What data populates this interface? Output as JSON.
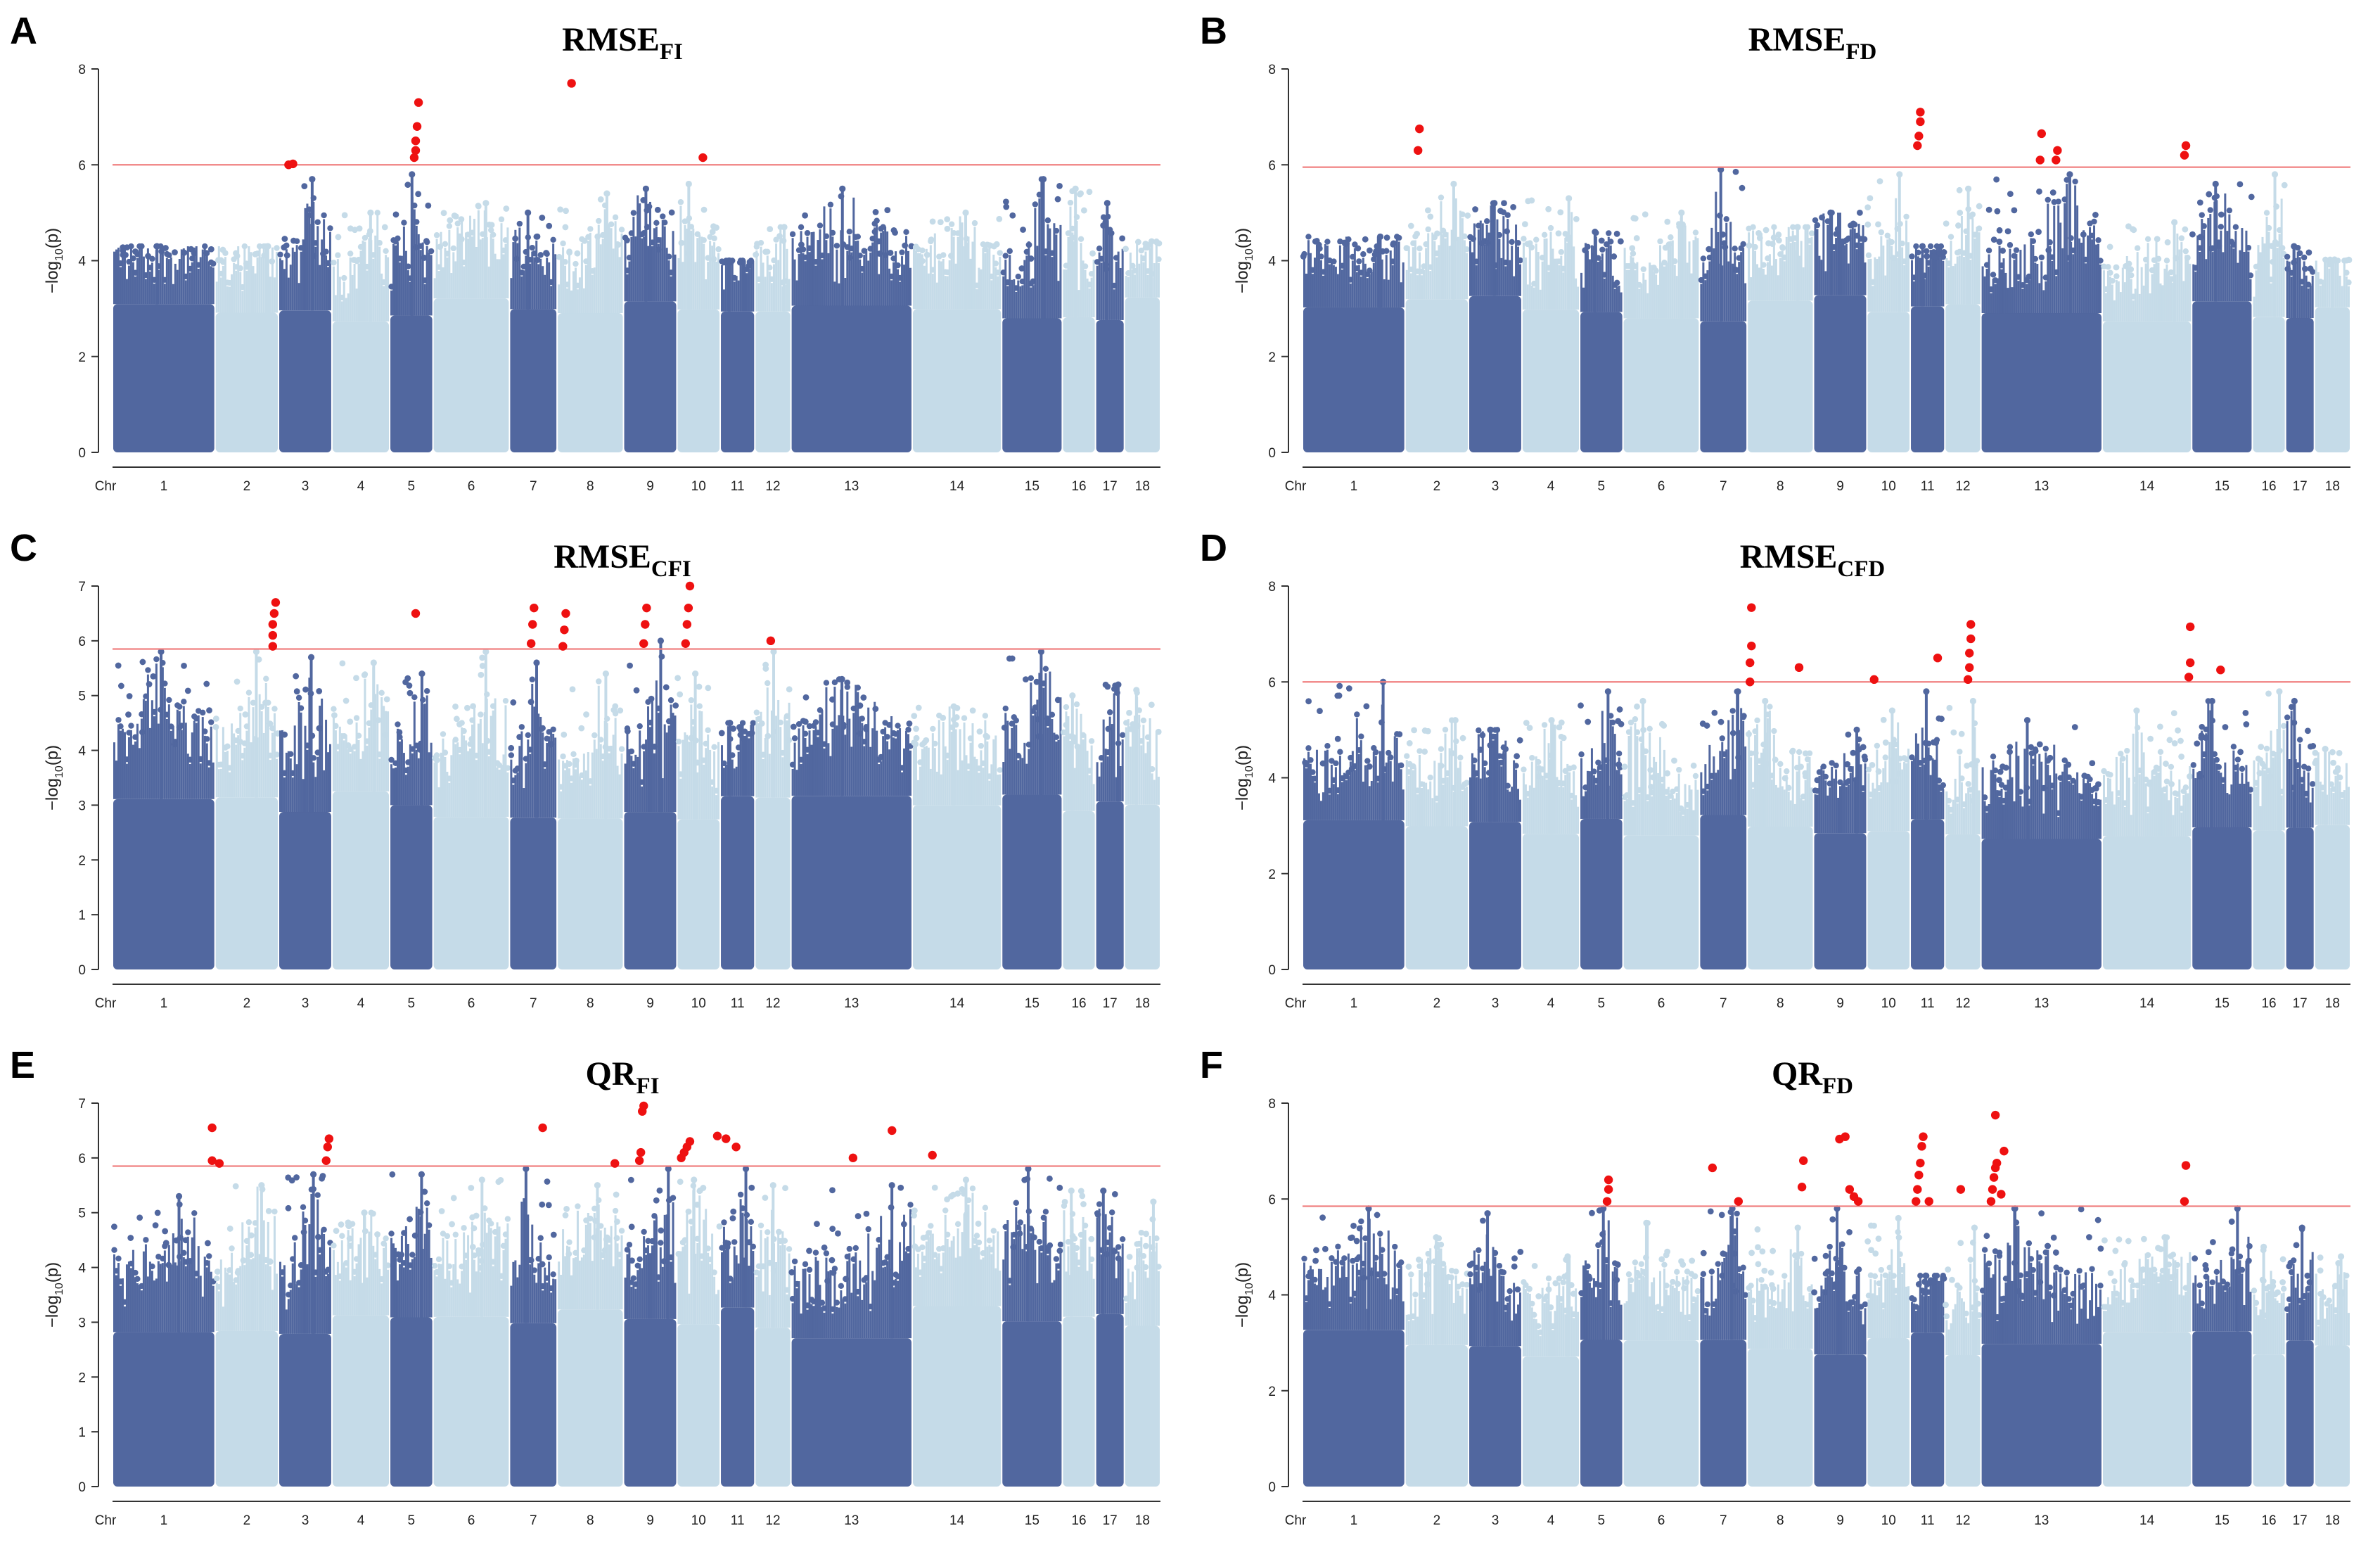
{
  "chart_data": [
    {
      "type": "scatter",
      "panel_label": "A",
      "title": "RMSE",
      "title_sub": "FI",
      "ylabel": "-log10(p)",
      "ylim": [
        0,
        8
      ],
      "yticks": [
        0,
        2,
        4,
        6,
        8
      ],
      "threshold": 6.0,
      "x_first_label": "Chr",
      "chromosomes": [
        "1",
        "2",
        "3",
        "4",
        "5",
        "6",
        "7",
        "8",
        "9",
        "10",
        "11",
        "12",
        "13",
        "14",
        "15",
        "16",
        "17",
        "18"
      ],
      "chr_spans": [
        [
          0,
          7.1
        ],
        [
          7.1,
          11.5
        ],
        [
          11.5,
          15.2
        ],
        [
          15.2,
          19.2
        ],
        [
          19.2,
          22.2
        ],
        [
          22.2,
          27.5
        ],
        [
          27.5,
          30.8
        ],
        [
          30.8,
          35.4
        ],
        [
          35.4,
          39.1
        ],
        [
          39.1,
          42.1
        ],
        [
          42.1,
          44.5
        ],
        [
          44.5,
          47.0
        ],
        [
          47.0,
          55.4
        ],
        [
          55.4,
          61.6
        ],
        [
          61.6,
          65.8
        ],
        [
          65.8,
          68.1
        ],
        [
          68.1,
          70.1
        ],
        [
          70.1,
          72.6
        ]
      ],
      "chr_peaks": [
        4.3,
        4.3,
        5.7,
        5.0,
        5.8,
        5.2,
        5.0,
        5.4,
        5.5,
        5.6,
        4.0,
        4.7,
        5.5,
        5.0,
        5.7,
        5.5,
        5.2,
        4.4
      ],
      "significant": [
        [
          12.2,
          6.0
        ],
        [
          12.5,
          6.02
        ],
        [
          20.9,
          6.15
        ],
        [
          21.0,
          6.3
        ],
        [
          21.0,
          6.5
        ],
        [
          21.1,
          6.8
        ],
        [
          21.2,
          7.3
        ],
        [
          31.8,
          7.7
        ],
        [
          40.9,
          6.15
        ]
      ]
    },
    {
      "type": "scatter",
      "panel_label": "B",
      "title": "RMSE",
      "title_sub": "FD",
      "ylabel": "-log10(p)",
      "ylim": [
        0,
        8
      ],
      "yticks": [
        0,
        2,
        4,
        6,
        8
      ],
      "threshold": 5.95,
      "x_first_label": "Chr",
      "chromosomes": [
        "1",
        "2",
        "3",
        "4",
        "5",
        "6",
        "7",
        "8",
        "9",
        "10",
        "11",
        "12",
        "13",
        "14",
        "15",
        "16",
        "17",
        "18"
      ],
      "chr_spans": [
        [
          0,
          7.1
        ],
        [
          7.1,
          11.5
        ],
        [
          11.5,
          15.2
        ],
        [
          15.2,
          19.2
        ],
        [
          19.2,
          22.2
        ],
        [
          22.2,
          27.5
        ],
        [
          27.5,
          30.8
        ],
        [
          30.8,
          35.4
        ],
        [
          35.4,
          39.1
        ],
        [
          39.1,
          42.1
        ],
        [
          42.1,
          44.5
        ],
        [
          44.5,
          47.0
        ],
        [
          47.0,
          55.4
        ],
        [
          55.4,
          61.6
        ],
        [
          61.6,
          65.8
        ],
        [
          65.8,
          68.1
        ],
        [
          68.1,
          70.1
        ],
        [
          70.1,
          72.6
        ]
      ],
      "chr_peaks": [
        4.5,
        5.6,
        5.2,
        5.3,
        4.6,
        5.0,
        5.9,
        4.7,
        5.0,
        5.8,
        4.3,
        5.5,
        5.8,
        4.8,
        5.6,
        5.8,
        4.3,
        4.0
      ],
      "significant": [
        [
          8.0,
          6.3
        ],
        [
          8.1,
          6.75
        ],
        [
          42.6,
          6.4
        ],
        [
          42.7,
          6.6
        ],
        [
          42.8,
          6.9
        ],
        [
          42.8,
          7.1
        ],
        [
          51.1,
          6.1
        ],
        [
          51.2,
          6.65
        ],
        [
          52.2,
          6.1
        ],
        [
          52.3,
          6.3
        ],
        [
          61.1,
          6.2
        ],
        [
          61.2,
          6.4
        ]
      ]
    },
    {
      "type": "scatter",
      "panel_label": "C",
      "title": "RMSE",
      "title_sub": "CFI",
      "ylabel": "-log10(p)",
      "ylim": [
        0,
        7
      ],
      "yticks": [
        0,
        1,
        2,
        3,
        4,
        5,
        6,
        7
      ],
      "threshold": 5.85,
      "x_first_label": "Chr",
      "chromosomes": [
        "1",
        "2",
        "3",
        "4",
        "5",
        "6",
        "7",
        "8",
        "9",
        "10",
        "11",
        "12",
        "13",
        "14",
        "15",
        "16",
        "17",
        "18"
      ],
      "chr_spans": [
        [
          0,
          7.1
        ],
        [
          7.1,
          11.5
        ],
        [
          11.5,
          15.2
        ],
        [
          15.2,
          19.2
        ],
        [
          19.2,
          22.2
        ],
        [
          22.2,
          27.5
        ],
        [
          27.5,
          30.8
        ],
        [
          30.8,
          35.4
        ],
        [
          35.4,
          39.1
        ],
        [
          39.1,
          42.1
        ],
        [
          42.1,
          44.5
        ],
        [
          44.5,
          47.0
        ],
        [
          47.0,
          55.4
        ],
        [
          55.4,
          61.6
        ],
        [
          61.6,
          65.8
        ],
        [
          65.8,
          68.1
        ],
        [
          68.1,
          70.1
        ],
        [
          70.1,
          72.6
        ]
      ],
      "chr_peaks": [
        5.8,
        5.8,
        5.7,
        5.6,
        5.4,
        5.8,
        5.6,
        5.4,
        6.0,
        5.4,
        4.5,
        5.8,
        5.3,
        4.8,
        5.8,
        5.0,
        5.2,
        5.1
      ],
      "significant": [
        [
          11.1,
          5.9
        ],
        [
          11.1,
          6.1
        ],
        [
          11.1,
          6.3
        ],
        [
          11.2,
          6.5
        ],
        [
          11.3,
          6.7
        ],
        [
          21.0,
          6.5
        ],
        [
          29.0,
          5.95
        ],
        [
          29.1,
          6.3
        ],
        [
          29.2,
          6.6
        ],
        [
          31.2,
          5.9
        ],
        [
          31.3,
          6.2
        ],
        [
          31.4,
          6.5
        ],
        [
          36.8,
          5.95
        ],
        [
          36.9,
          6.3
        ],
        [
          37.0,
          6.6
        ],
        [
          39.7,
          5.95
        ],
        [
          39.8,
          6.3
        ],
        [
          39.9,
          6.6
        ],
        [
          40.0,
          7.0
        ],
        [
          45.6,
          6.0
        ]
      ]
    },
    {
      "type": "scatter",
      "panel_label": "D",
      "title": "RMSE",
      "title_sub": "CFD",
      "ylabel": "-log10(p)",
      "ylim": [
        0,
        8
      ],
      "yticks": [
        0,
        2,
        4,
        6,
        8
      ],
      "threshold": 6.0,
      "x_first_label": "Chr",
      "chromosomes": [
        "1",
        "2",
        "3",
        "4",
        "5",
        "6",
        "7",
        "8",
        "9",
        "10",
        "11",
        "12",
        "13",
        "14",
        "15",
        "16",
        "17",
        "18"
      ],
      "chr_spans": [
        [
          0,
          7.1
        ],
        [
          7.1,
          11.5
        ],
        [
          11.5,
          15.2
        ],
        [
          15.2,
          19.2
        ],
        [
          19.2,
          22.2
        ],
        [
          22.2,
          27.5
        ],
        [
          27.5,
          30.8
        ],
        [
          30.8,
          35.4
        ],
        [
          35.4,
          39.1
        ],
        [
          39.1,
          42.1
        ],
        [
          42.1,
          44.5
        ],
        [
          44.5,
          47.0
        ],
        [
          47.0,
          55.4
        ],
        [
          55.4,
          61.6
        ],
        [
          61.6,
          65.8
        ],
        [
          65.8,
          68.1
        ],
        [
          68.1,
          70.1
        ],
        [
          70.1,
          72.6
        ]
      ],
      "chr_peaks": [
        6.0,
        5.2,
        5.0,
        5.2,
        5.8,
        5.6,
        5.8,
        5.6,
        5.0,
        5.4,
        5.8,
        5.6,
        5.2,
        5.4,
        5.6,
        5.8,
        5.6,
        4.6
      ],
      "significant": [
        [
          31.0,
          6.0
        ],
        [
          31.0,
          6.4
        ],
        [
          31.1,
          6.75
        ],
        [
          31.1,
          7.55
        ],
        [
          34.4,
          6.3
        ],
        [
          39.6,
          6.05
        ],
        [
          44.0,
          6.5
        ],
        [
          46.1,
          6.05
        ],
        [
          46.2,
          6.3
        ],
        [
          46.2,
          6.6
        ],
        [
          46.3,
          6.9
        ],
        [
          46.3,
          7.2
        ],
        [
          61.4,
          6.1
        ],
        [
          61.5,
          6.4
        ],
        [
          61.5,
          7.15
        ],
        [
          63.6,
          6.25
        ]
      ]
    },
    {
      "type": "scatter",
      "panel_label": "E",
      "title": "QR",
      "title_sub": "FI",
      "ylabel": "-log10(p)",
      "ylim": [
        0,
        7
      ],
      "yticks": [
        0,
        1,
        2,
        3,
        4,
        5,
        6,
        7
      ],
      "threshold": 5.85,
      "x_first_label": "Chr",
      "chromosomes": [
        "1",
        "2",
        "3",
        "4",
        "5",
        "6",
        "7",
        "8",
        "9",
        "10",
        "11",
        "12",
        "13",
        "14",
        "15",
        "16",
        "17",
        "18"
      ],
      "chr_spans": [
        [
          0,
          7.1
        ],
        [
          7.1,
          11.5
        ],
        [
          11.5,
          15.2
        ],
        [
          15.2,
          19.2
        ],
        [
          19.2,
          22.2
        ],
        [
          22.2,
          27.5
        ],
        [
          27.5,
          30.8
        ],
        [
          30.8,
          35.4
        ],
        [
          35.4,
          39.1
        ],
        [
          39.1,
          42.1
        ],
        [
          42.1,
          44.5
        ],
        [
          44.5,
          47.0
        ],
        [
          47.0,
          55.4
        ],
        [
          55.4,
          61.6
        ],
        [
          61.6,
          65.8
        ],
        [
          65.8,
          68.1
        ],
        [
          68.1,
          70.1
        ],
        [
          70.1,
          72.6
        ]
      ],
      "chr_peaks": [
        5.3,
        5.5,
        5.7,
        5.0,
        5.7,
        5.6,
        5.8,
        5.5,
        5.8,
        5.6,
        5.8,
        5.5,
        5.5,
        5.6,
        5.8,
        5.4,
        5.4,
        5.2
      ],
      "significant": [
        [
          6.9,
          5.95
        ],
        [
          6.9,
          6.55
        ],
        [
          7.4,
          5.9
        ],
        [
          14.8,
          5.95
        ],
        [
          14.9,
          6.2
        ],
        [
          15.0,
          6.35
        ],
        [
          29.8,
          6.55
        ],
        [
          34.8,
          5.9
        ],
        [
          36.5,
          5.95
        ],
        [
          36.6,
          6.1
        ],
        [
          36.7,
          6.85
        ],
        [
          36.8,
          6.95
        ],
        [
          39.4,
          6.0
        ],
        [
          39.6,
          6.1
        ],
        [
          39.8,
          6.2
        ],
        [
          40.0,
          6.3
        ],
        [
          41.9,
          6.4
        ],
        [
          42.5,
          6.35
        ],
        [
          43.2,
          6.2
        ],
        [
          51.3,
          6.0
        ],
        [
          54.0,
          6.5
        ],
        [
          56.8,
          6.05
        ]
      ]
    },
    {
      "type": "scatter",
      "panel_label": "F",
      "title": "QR",
      "title_sub": "FD",
      "ylabel": "-log10(p)",
      "ylim": [
        0,
        8
      ],
      "yticks": [
        0,
        2,
        4,
        6,
        8
      ],
      "threshold": 5.85,
      "x_first_label": "Chr",
      "chromosomes": [
        "1",
        "2",
        "3",
        "4",
        "5",
        "6",
        "7",
        "8",
        "9",
        "10",
        "11",
        "12",
        "13",
        "14",
        "15",
        "16",
        "17",
        "18"
      ],
      "chr_spans": [
        [
          0,
          7.1
        ],
        [
          7.1,
          11.5
        ],
        [
          11.5,
          15.2
        ],
        [
          15.2,
          19.2
        ],
        [
          19.2,
          22.2
        ],
        [
          22.2,
          27.5
        ],
        [
          27.5,
          30.8
        ],
        [
          30.8,
          35.4
        ],
        [
          35.4,
          39.1
        ],
        [
          39.1,
          42.1
        ],
        [
          42.1,
          44.5
        ],
        [
          44.5,
          47.0
        ],
        [
          47.0,
          55.4
        ],
        [
          55.4,
          61.6
        ],
        [
          61.6,
          65.8
        ],
        [
          65.8,
          68.1
        ],
        [
          68.1,
          70.1
        ],
        [
          70.1,
          72.6
        ]
      ],
      "chr_peaks": [
        5.8,
        5.2,
        5.7,
        4.8,
        5.8,
        5.5,
        5.8,
        5.4,
        5.8,
        5.6,
        4.4,
        5.4,
        5.8,
        5.2,
        5.8,
        5.0,
        5.4,
        4.8
      ],
      "significant": [
        [
          21.1,
          5.95
        ],
        [
          21.2,
          6.2
        ],
        [
          21.2,
          6.4
        ],
        [
          28.4,
          6.65
        ],
        [
          30.2,
          5.95
        ],
        [
          34.6,
          6.25
        ],
        [
          34.7,
          6.8
        ],
        [
          37.2,
          7.25
        ],
        [
          37.6,
          7.3
        ],
        [
          37.9,
          6.2
        ],
        [
          38.2,
          6.05
        ],
        [
          38.5,
          5.95
        ],
        [
          42.5,
          5.95
        ],
        [
          42.6,
          6.2
        ],
        [
          42.7,
          6.5
        ],
        [
          42.8,
          6.75
        ],
        [
          42.9,
          7.1
        ],
        [
          43.0,
          7.3
        ],
        [
          43.4,
          5.95
        ],
        [
          45.6,
          6.2
        ],
        [
          47.7,
          5.95
        ],
        [
          47.8,
          6.2
        ],
        [
          47.9,
          6.45
        ],
        [
          48.0,
          6.65
        ],
        [
          48.1,
          6.75
        ],
        [
          48.0,
          7.75
        ],
        [
          48.4,
          6.1
        ],
        [
          48.6,
          7.0
        ],
        [
          61.1,
          5.95
        ],
        [
          61.2,
          6.7
        ]
      ]
    }
  ]
}
